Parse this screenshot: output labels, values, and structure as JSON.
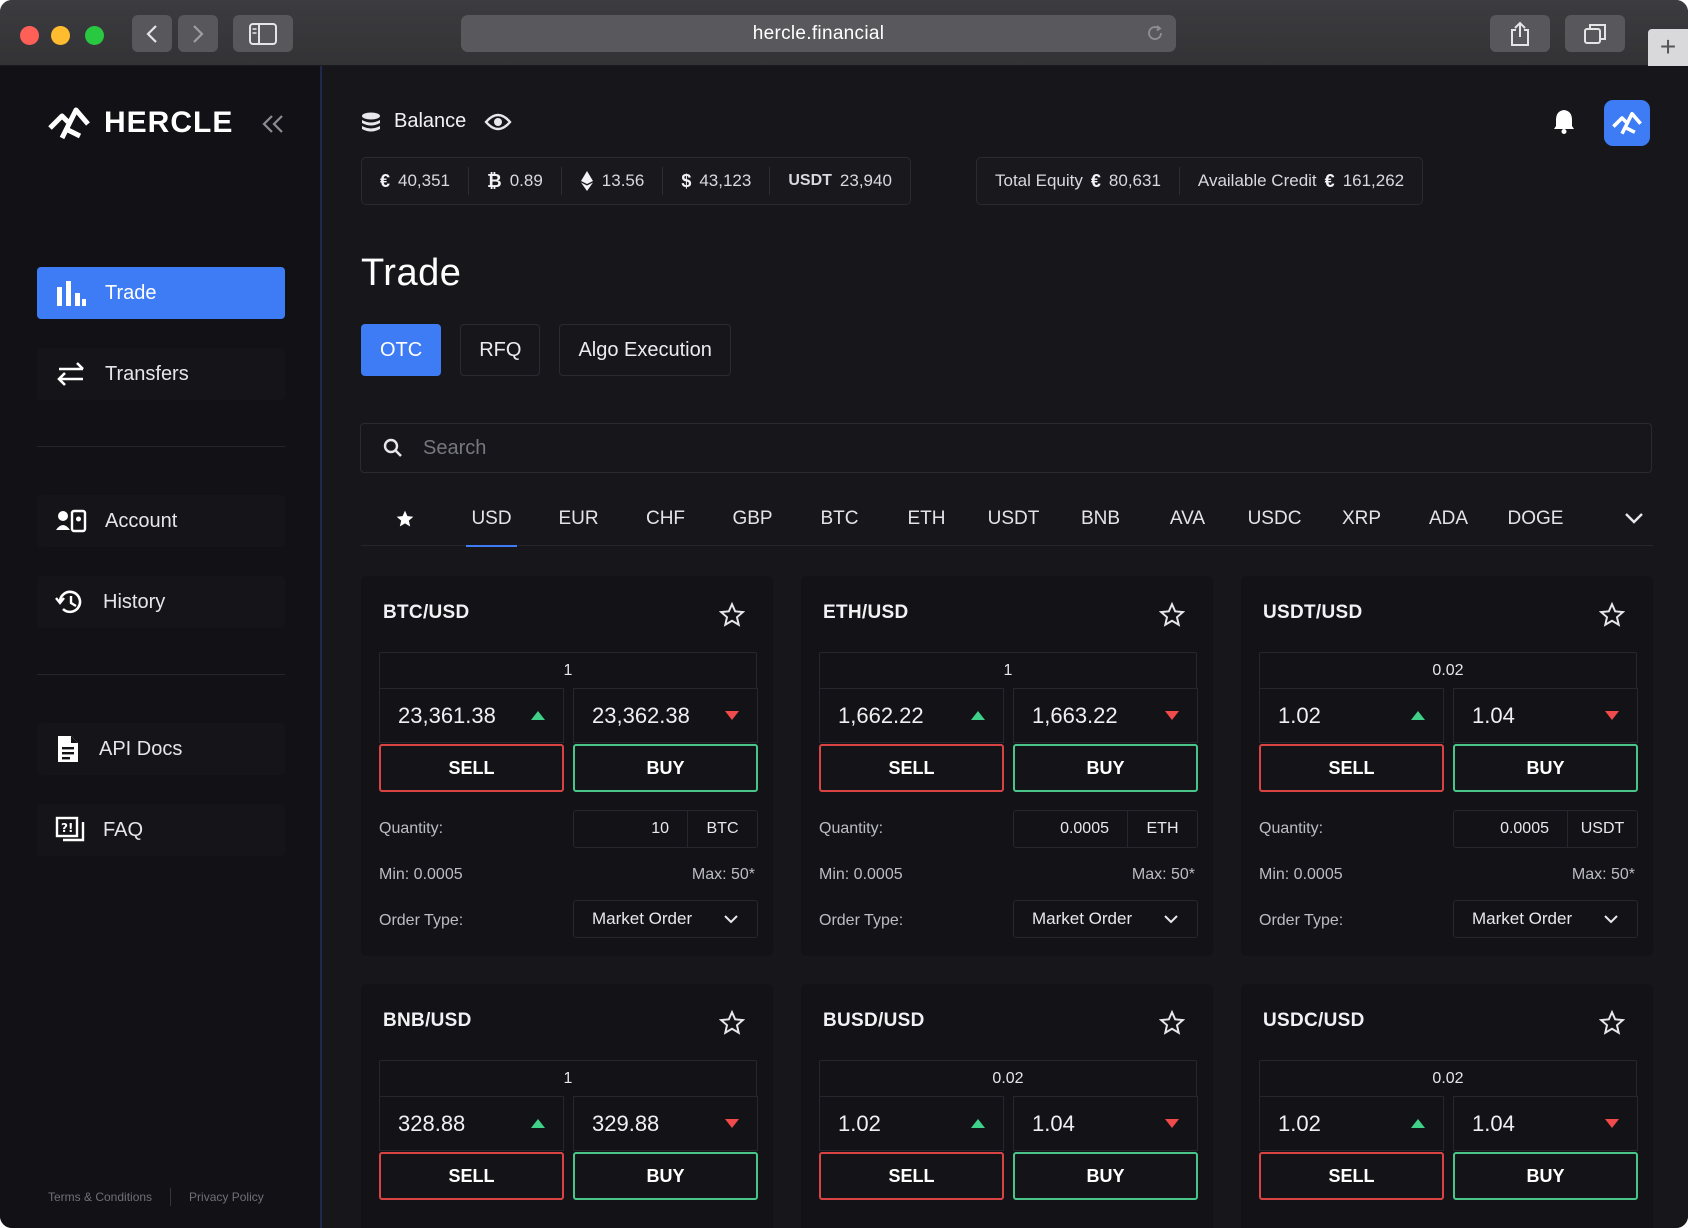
{
  "browser": {
    "url": "hercle.financial"
  },
  "brand": {
    "name": "HERCLE"
  },
  "sidebar": {
    "items": [
      {
        "label": "Trade",
        "active": true
      },
      {
        "label": "Transfers"
      },
      {
        "label": "Account"
      },
      {
        "label": "History"
      },
      {
        "label": "API Docs"
      },
      {
        "label": "FAQ"
      }
    ],
    "footer": {
      "terms": "Terms & Conditions",
      "privacy": "Privacy Policy"
    }
  },
  "header": {
    "balance_label": "Balance",
    "balances": [
      {
        "symbol": "€",
        "value": "40,351"
      },
      {
        "symbol": "₿",
        "value": "0.89"
      },
      {
        "symbol": "eth",
        "value": "13.56"
      },
      {
        "symbol": "$",
        "value": "43,123"
      },
      {
        "symbol": "USDT",
        "value": "23,940"
      }
    ],
    "total_equity_label": "Total Equity",
    "total_equity_symbol": "€",
    "total_equity_value": "80,631",
    "available_credit_label": "Available Credit",
    "available_credit_symbol": "€",
    "available_credit_value": "161,262"
  },
  "page": {
    "title": "Trade",
    "tabs": [
      "OTC",
      "RFQ",
      "Algo Execution"
    ],
    "active_tab": "OTC",
    "search_placeholder": "Search"
  },
  "currencies": [
    "USD",
    "EUR",
    "CHF",
    "GBP",
    "BTC",
    "ETH",
    "USDT",
    "BNB",
    "AVA",
    "USDC",
    "XRP",
    "ADA",
    "DOGE"
  ],
  "active_currency": "USD",
  "cards": [
    {
      "pair": "BTC/USD",
      "size": "1",
      "sell_price": "23,361.38",
      "buy_price": "23,362.38",
      "sell_label": "SELL",
      "buy_label": "BUY",
      "quantity_label": "Quantity:",
      "quantity": "10",
      "unit": "BTC",
      "min": "Min: 0.0005",
      "max": "Max: 50*",
      "order_type_label": "Order Type:",
      "order_type": "Market Order"
    },
    {
      "pair": "ETH/USD",
      "size": "1",
      "sell_price": "1,662.22",
      "buy_price": "1,663.22",
      "sell_label": "SELL",
      "buy_label": "BUY",
      "quantity_label": "Quantity:",
      "quantity": "0.0005",
      "unit": "ETH",
      "min": "Min: 0.0005",
      "max": "Max: 50*",
      "order_type_label": "Order Type:",
      "order_type": "Market Order"
    },
    {
      "pair": "USDT/USD",
      "size": "0.02",
      "sell_price": "1.02",
      "buy_price": "1.04",
      "sell_label": "SELL",
      "buy_label": "BUY",
      "quantity_label": "Quantity:",
      "quantity": "0.0005",
      "unit": "USDT",
      "min": "Min: 0.0005",
      "max": "Max: 50*",
      "order_type_label": "Order Type:",
      "order_type": "Market Order"
    },
    {
      "pair": "BNB/USD",
      "size": "1",
      "sell_price": "328.88",
      "buy_price": "329.88",
      "sell_label": "SELL",
      "buy_label": "BUY"
    },
    {
      "pair": "BUSD/USD",
      "size": "0.02",
      "sell_price": "1.02",
      "buy_price": "1.04",
      "sell_label": "SELL",
      "buy_label": "BUY"
    },
    {
      "pair": "USDC/USD",
      "size": "0.02",
      "sell_price": "1.02",
      "buy_price": "1.04",
      "sell_label": "SELL",
      "buy_label": "BUY"
    }
  ],
  "colors": {
    "accent": "#3d7cf4",
    "sell": "#d94343",
    "buy": "#49c58a",
    "up": "#3fd08a",
    "down": "#f04a4a"
  }
}
